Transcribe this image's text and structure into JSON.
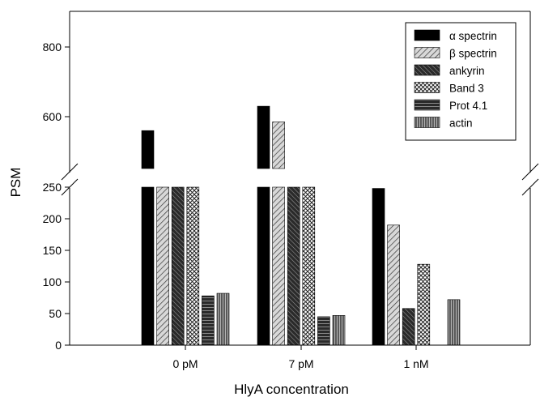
{
  "chart_data": {
    "type": "bar",
    "title": "",
    "xlabel": "HlyA concentration",
    "ylabel": "PSM",
    "categories": [
      "0 pM",
      "7 pM",
      "1 nM"
    ],
    "axis_break": {
      "lower_range": [
        0,
        250
      ],
      "upper_range": [
        500,
        850
      ]
    },
    "lower_ticks": [
      0,
      50,
      100,
      150,
      200,
      250
    ],
    "upper_ticks": [
      600,
      800
    ],
    "series": [
      {
        "name": "α spectrin",
        "pattern": "solid-black",
        "values": [
          560,
          630,
          248
        ]
      },
      {
        "name": "β spectrin",
        "pattern": "diag-right",
        "values": [
          490,
          585,
          190
        ]
      },
      {
        "name": "ankyrin",
        "pattern": "diag-left-dark",
        "values": [
          250,
          250,
          58
        ]
      },
      {
        "name": "Band 3",
        "pattern": "crosshatch",
        "values": [
          250,
          250,
          128
        ]
      },
      {
        "name": "Prot 4.1",
        "pattern": "horizontal-lines",
        "values": [
          78,
          45,
          null
        ]
      },
      {
        "name": "actin",
        "pattern": "vertical-lines",
        "values": [
          82,
          47,
          72
        ]
      }
    ],
    "legend_position": "top-right",
    "grid": false
  }
}
